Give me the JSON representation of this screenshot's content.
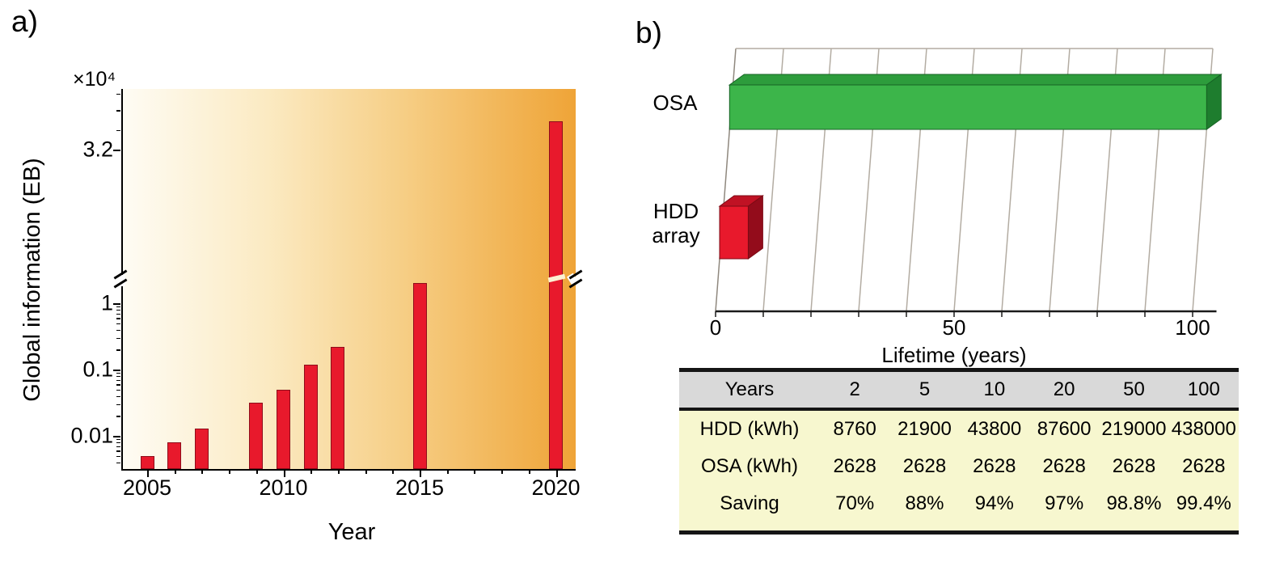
{
  "figure": {
    "panel_a_label": "a)",
    "panel_b_label": "b)"
  },
  "chart_data": [
    {
      "type": "bar",
      "panel": "a",
      "xlabel": "Year",
      "ylabel": "Global information (EB)",
      "y_scale_label": "×10⁴",
      "y_axis": {
        "scale": "log-with-break",
        "tick_labels": [
          "3.2",
          "1",
          "0.1",
          "0.01"
        ],
        "tick_values": [
          3.2,
          1,
          0.1,
          0.01
        ],
        "break_between": [
          2.3,
          3.0
        ]
      },
      "x_tick_labels": [
        "2005",
        "2010",
        "2015",
        "2020"
      ],
      "x": [
        2005,
        2006,
        2007,
        2009,
        2010,
        2011,
        2012,
        2015,
        2020
      ],
      "values": [
        0.005,
        0.008,
        0.013,
        0.032,
        0.05,
        0.12,
        0.22,
        2.0,
        4.4
      ],
      "bar_color": "#e8192c",
      "background_gradient": [
        "#fefcf4",
        "#efa437"
      ]
    },
    {
      "type": "bar-horizontal-3d",
      "panel": "b",
      "xlabel": "Lifetime (years)",
      "x_tick_labels": [
        "0",
        "50",
        "100"
      ],
      "x_tick_values": [
        0,
        50,
        100
      ],
      "xlim": [
        0,
        105
      ],
      "grid_step": 10,
      "categories": [
        "OSA",
        "HDD array"
      ],
      "values": [
        100,
        6
      ],
      "bar_styles": [
        {
          "front": "#3cb54a",
          "top": "#2d9c3c",
          "side": "#1e7d2e",
          "stroke": "#166324"
        },
        {
          "front": "#e8192c",
          "top": "#c01224",
          "side": "#930c1b",
          "stroke": "#7c0a14"
        }
      ],
      "grid_color": "#b3aca2",
      "axis_color": "#1a1a1a"
    }
  ],
  "table": {
    "header": [
      "Years",
      "2",
      "5",
      "10",
      "20",
      "50",
      "100"
    ],
    "rows": [
      [
        "HDD (kWh)",
        "8760",
        "21900",
        "43800",
        "87600",
        "219000",
        "438000"
      ],
      [
        "OSA (kWh)",
        "2628",
        "2628",
        "2628",
        "2628",
        "2628",
        "2628"
      ],
      [
        "Saving",
        "70%",
        "88%",
        "94%",
        "97%",
        "98.8%",
        "99.4%"
      ]
    ]
  }
}
